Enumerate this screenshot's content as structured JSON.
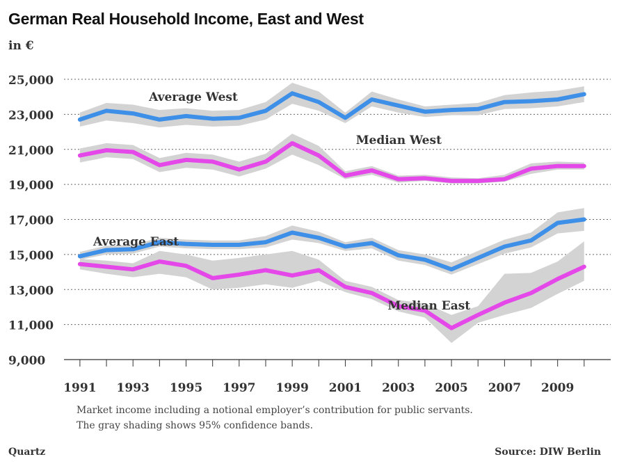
{
  "title": "German Real Household Income, East and West",
  "unit_label": "in €",
  "notes": [
    "Market income including a notional employer’s contribution for public servants.",
    "The gray shading shows 95% confidence bands."
  ],
  "credit": "Quartz",
  "source": "Source: DIW Berlin",
  "chart_data": {
    "type": "line",
    "ylim": [
      9000,
      25000
    ],
    "xlim": [
      1990.4,
      2011.0
    ],
    "yticks": [
      9000,
      11000,
      13000,
      15000,
      17000,
      19000,
      21000,
      23000,
      25000
    ],
    "ytick_labels": [
      "9,000",
      "11,000",
      "13,000",
      "15,000",
      "17,000",
      "19,000",
      "21,000",
      "23,000",
      "25,000"
    ],
    "xticks": [
      1991,
      1993,
      1995,
      1997,
      1999,
      2001,
      2003,
      2005,
      2007,
      2009
    ],
    "x": [
      1991,
      1992,
      1993,
      1994,
      1995,
      1996,
      1997,
      1998,
      1999,
      2000,
      2001,
      2002,
      2003,
      2004,
      2005,
      2006,
      2007,
      2008,
      2009,
      2010
    ],
    "grid": "horizontal-dotted",
    "band_color": "#d3d3d3",
    "series": [
      {
        "name": "Average West",
        "color": "#3d8fe8",
        "label_year": 1993.6,
        "label_value": 24000,
        "values": [
          22700,
          23200,
          23050,
          22700,
          22900,
          22750,
          22800,
          23200,
          24200,
          23700,
          22800,
          23850,
          23500,
          23150,
          23250,
          23300,
          23700,
          23750,
          23850,
          24150
        ],
        "lower": [
          22300,
          22650,
          22500,
          22250,
          22400,
          22300,
          22350,
          22700,
          23600,
          23200,
          22500,
          23450,
          23100,
          22850,
          22950,
          22950,
          23300,
          23350,
          23450,
          23700
        ],
        "upper": [
          23100,
          23650,
          23550,
          23250,
          23350,
          23200,
          23250,
          23700,
          24800,
          24300,
          23100,
          24300,
          23850,
          23450,
          23550,
          23650,
          24100,
          24250,
          24350,
          24600
        ]
      },
      {
        "name": "Median West",
        "color": "#e548e8",
        "label_year": 2001.4,
        "label_value": 21550,
        "values": [
          20650,
          20950,
          20850,
          20100,
          20400,
          20300,
          19850,
          20300,
          21350,
          20650,
          19500,
          19800,
          19300,
          19350,
          19200,
          19200,
          19300,
          19900,
          20050,
          20050
        ],
        "lower": [
          20250,
          20550,
          20450,
          19700,
          19950,
          19850,
          19450,
          19900,
          20700,
          20100,
          19300,
          19550,
          19100,
          19200,
          19050,
          19050,
          19150,
          19600,
          19850,
          19850
        ],
        "upper": [
          21050,
          21350,
          21250,
          20500,
          20800,
          20700,
          20300,
          20750,
          21900,
          21200,
          19750,
          20050,
          19500,
          19550,
          19400,
          19350,
          19550,
          20200,
          20300,
          20250
        ]
      },
      {
        "name": "Average East",
        "color": "#3d8fe8",
        "label_year": 1991.5,
        "label_value": 15750,
        "values": [
          14900,
          15250,
          15300,
          15700,
          15600,
          15550,
          15550,
          15700,
          16250,
          15950,
          15450,
          15650,
          14950,
          14700,
          14150,
          14800,
          15450,
          15800,
          16800,
          17000
        ],
        "lower": [
          14700,
          15000,
          15050,
          15450,
          15350,
          15300,
          15300,
          15400,
          15850,
          15650,
          15200,
          15350,
          14650,
          14400,
          13850,
          14450,
          15050,
          15400,
          16200,
          16350
        ],
        "upper": [
          15150,
          15500,
          15550,
          15950,
          15850,
          15800,
          15800,
          16050,
          16650,
          16300,
          15700,
          15950,
          15250,
          15000,
          14550,
          15200,
          15850,
          16250,
          17400,
          17650
        ]
      },
      {
        "name": "Median East",
        "color": "#e548e8",
        "label_year": 2002.6,
        "label_value": 12100,
        "values": [
          14450,
          14300,
          14150,
          14600,
          14350,
          13650,
          13850,
          14100,
          13800,
          14100,
          13150,
          12800,
          12050,
          11800,
          10800,
          11550,
          12250,
          12800,
          13600,
          14300
        ],
        "lower": [
          14150,
          13900,
          13700,
          13900,
          13700,
          13000,
          13100,
          13300,
          13100,
          13500,
          12850,
          12450,
          11750,
          11400,
          9950,
          11100,
          11550,
          11950,
          12750,
          13500
        ],
        "upper": [
          14750,
          14650,
          14500,
          15200,
          15000,
          14650,
          14800,
          15000,
          15200,
          14700,
          13500,
          13150,
          12400,
          12200,
          11550,
          12050,
          13900,
          13950,
          14600,
          15750
        ]
      }
    ]
  }
}
